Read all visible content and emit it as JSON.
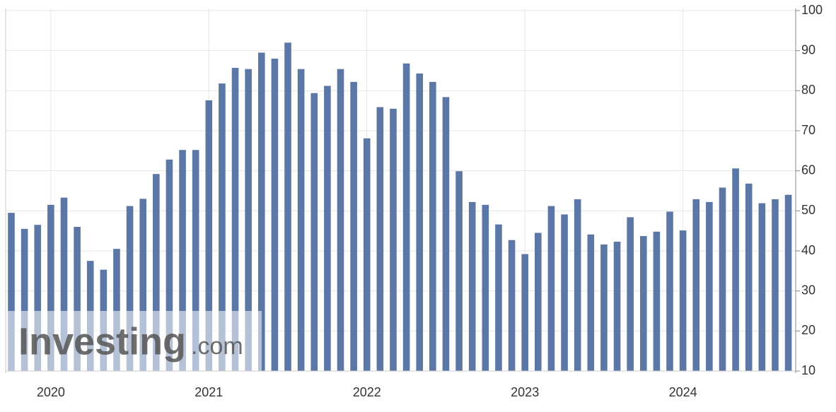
{
  "chart_data": {
    "type": "bar",
    "categories": [
      null,
      null,
      null,
      "2020",
      null,
      null,
      null,
      null,
      null,
      null,
      null,
      null,
      null,
      null,
      null,
      "2021",
      null,
      null,
      null,
      null,
      null,
      null,
      null,
      null,
      null,
      null,
      null,
      "2022",
      null,
      null,
      null,
      null,
      null,
      null,
      null,
      null,
      null,
      null,
      null,
      "2023",
      null,
      null,
      null,
      null,
      null,
      null,
      null,
      null,
      null,
      null,
      null,
      "2024",
      null,
      null,
      null,
      null,
      null,
      null,
      null,
      null
    ],
    "values": [
      49.5,
      45.5,
      46.5,
      51.5,
      53.3,
      46,
      37.5,
      35.3,
      40.5,
      51.2,
      53,
      59.2,
      62.8,
      65.2,
      65.2,
      77.6,
      81.8,
      85.7,
      85.4,
      89.5,
      88,
      92,
      85.4,
      79.4,
      81.2,
      85.4,
      82.2,
      68.1,
      75.9,
      75.5,
      86.8,
      84.3,
      82.2,
      78.4,
      59.9,
      52.2,
      51.5,
      46.6,
      42.7,
      39.2,
      44.5,
      51.2,
      49.1,
      52.9,
      44.1,
      41.6,
      42.3,
      48.4,
      43.7,
      44.8,
      49.8,
      45.1,
      52.9,
      52.2,
      55.8,
      60.6,
      56.8,
      51.9,
      52.9,
      54
    ],
    "color": "#5b77a5",
    "ylim": [
      10,
      100
    ],
    "yticks": [
      10,
      20,
      30,
      40,
      50,
      60,
      70,
      80,
      90,
      100
    ],
    "grid": true,
    "watermark": [
      "Investing",
      ".com"
    ]
  }
}
